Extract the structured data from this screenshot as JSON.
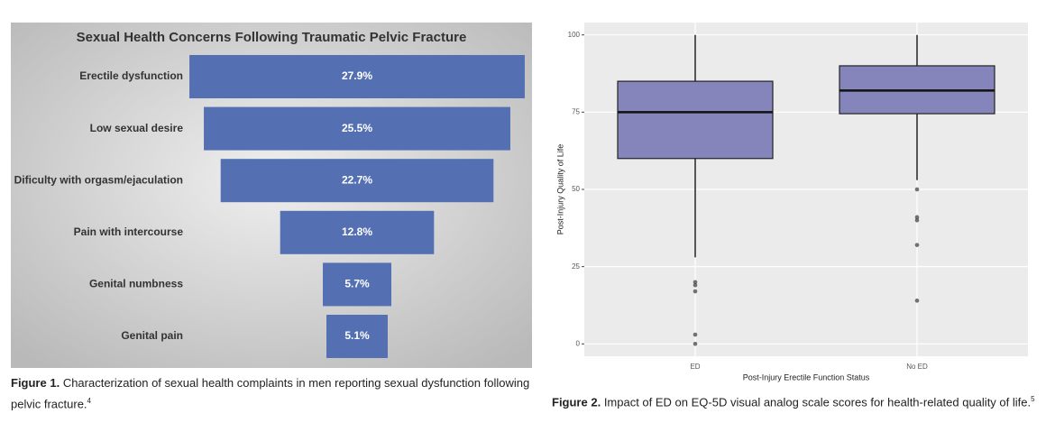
{
  "chart_data": [
    {
      "type": "funnel",
      "title": "Sexual Health Concerns Following Traumatic Pelvic Fracture",
      "categories": [
        "Erectile dysfunction",
        "Low sexual desire",
        "Dificulty with orgasm/ejaculation",
        "Pain with intercourse",
        "Genital numbness",
        "Genital pain"
      ],
      "values": [
        27.9,
        25.5,
        22.7,
        12.8,
        5.7,
        5.1
      ],
      "value_labels": [
        "27.9%",
        "25.5%",
        "22.7%",
        "12.8%",
        "5.7%",
        "5.1%"
      ],
      "color": "#5470b3",
      "caption_label": "Figure 1.",
      "caption": "Characterization of sexual health complaints in men reporting sexual dysfunction following pelvic fracture.",
      "caption_ref": "4"
    },
    {
      "type": "box",
      "categories": [
        "ED",
        "No ED"
      ],
      "boxes": [
        {
          "whisker_low": 28,
          "q1": 60,
          "median": 75,
          "q3": 85,
          "whisker_high": 100,
          "outliers": [
            20,
            19,
            17,
            3,
            0
          ]
        },
        {
          "whisker_low": 53,
          "q1": 74.5,
          "median": 82,
          "q3": 90,
          "whisker_high": 100,
          "outliers": [
            50,
            41,
            40,
            32,
            14
          ]
        }
      ],
      "color": "#8585bc",
      "x_label": "Post-Injury Erectile Function Status",
      "y_label": "Post-Injury Quality of Life",
      "ylim": [
        -4,
        104
      ],
      "yticks": [
        0,
        25,
        50,
        75,
        100
      ],
      "grid": true,
      "caption_label": "Figure 2.",
      "caption": "Impact of ED on EQ-5D visual analog scale scores for health-related quality of life.",
      "caption_ref": "5"
    }
  ]
}
